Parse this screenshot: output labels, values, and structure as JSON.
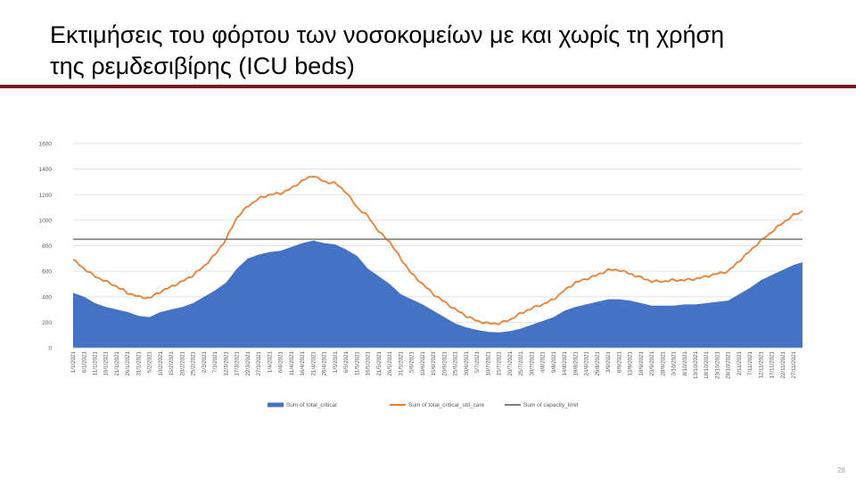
{
  "slide": {
    "title_line1": "Εκτιμήσεις του φόρτου των νοσοκομείων με και χωρίς τη χρήση",
    "title_line2": "της ρεμδεσιβίρης (ICU beds)",
    "page_number": "28",
    "accent_color": "#7b1c1c"
  },
  "chart_data": {
    "type": "area",
    "title": "",
    "xlabel": "",
    "ylabel": "",
    "ylim": [
      0,
      1600
    ],
    "yticks": [
      0,
      200,
      400,
      600,
      800,
      1000,
      1200,
      1400,
      1600
    ],
    "grid": true,
    "legend_position": "bottom",
    "x_tick_labels": [
      "1/1/2021",
      "6/1/2021",
      "11/1/2021",
      "16/1/2021",
      "21/1/2021",
      "26/1/2021",
      "31/1/2021",
      "5/2/2021",
      "10/2/2021",
      "15/2/2021",
      "20/2/2021",
      "25/2/2021",
      "2/3/2021",
      "7/3/2021",
      "12/3/2021",
      "17/3/2021",
      "22/3/2021",
      "27/3/2021",
      "1/4/2021",
      "6/4/2021",
      "11/4/2021",
      "16/4/2021",
      "21/4/2021",
      "26/4/2021",
      "1/5/2021",
      "6/5/2021",
      "11/5/2021",
      "16/5/2021",
      "21/5/2021",
      "26/5/2021",
      "31/5/2021",
      "5/6/2021",
      "10/6/2021",
      "15/6/2021",
      "20/6/2021",
      "25/6/2021",
      "30/6/2021",
      "5/7/2021",
      "10/7/2021",
      "15/7/2021",
      "20/7/2021",
      "25/7/2021",
      "30/7/2021",
      "4/8/2021",
      "9/8/2021",
      "14/8/2021",
      "19/8/2021",
      "24/8/2021",
      "29/8/2021",
      "3/9/2021",
      "8/9/2021",
      "13/9/2021",
      "18/9/2021",
      "23/9/2021",
      "28/9/2021",
      "3/10/2021",
      "8/10/2021",
      "13/10/2021",
      "18/10/2021",
      "23/10/2021",
      "28/10/2021",
      "2/11/2021",
      "7/11/2021",
      "12/11/2021",
      "17/11/2021",
      "22/11/2021",
      "27/11/2021"
    ],
    "x_day_offsets": [
      0,
      5,
      10,
      15,
      20,
      25,
      30,
      35,
      40,
      45,
      50,
      55,
      60,
      65,
      70,
      75,
      80,
      85,
      90,
      95,
      100,
      105,
      110,
      115,
      120,
      125,
      130,
      135,
      140,
      145,
      150,
      155,
      160,
      165,
      170,
      175,
      180,
      185,
      190,
      195,
      200,
      205,
      210,
      215,
      220,
      225,
      230,
      235,
      240,
      245,
      250,
      255,
      260,
      265,
      270,
      275,
      280,
      285,
      290,
      295,
      300,
      305,
      310,
      315,
      320,
      325,
      330
    ],
    "series": [
      {
        "name": "Sum of total_critical",
        "type": "area",
        "color": "#4472c4",
        "x_dates": [
          "1/1/2021",
          "6/1/2021",
          "11/1/2021",
          "16/1/2021",
          "21/1/2021",
          "26/1/2021",
          "31/1/2021",
          "5/2/2021",
          "10/2/2021",
          "15/2/2021",
          "20/2/2021",
          "25/2/2021",
          "2/3/2021",
          "7/3/2021",
          "12/3/2021",
          "17/3/2021",
          "22/3/2021",
          "27/3/2021",
          "1/4/2021",
          "6/4/2021",
          "11/4/2021",
          "16/4/2021",
          "21/4/2021",
          "26/4/2021",
          "1/5/2021",
          "6/5/2021",
          "11/5/2021",
          "16/5/2021",
          "21/5/2021",
          "26/5/2021",
          "31/5/2021",
          "5/6/2021",
          "10/6/2021",
          "15/6/2021",
          "20/6/2021",
          "25/6/2021",
          "30/6/2021",
          "5/7/2021",
          "10/7/2021",
          "15/7/2021",
          "20/7/2021",
          "25/7/2021",
          "30/7/2021",
          "4/8/2021",
          "9/8/2021",
          "14/8/2021",
          "19/8/2021",
          "24/8/2021",
          "29/8/2021",
          "3/9/2021",
          "8/9/2021",
          "13/9/2021",
          "18/9/2021",
          "23/9/2021",
          "28/9/2021",
          "3/10/2021",
          "8/10/2021",
          "13/10/2021",
          "18/10/2021",
          "23/10/2021",
          "28/10/2021",
          "2/11/2021",
          "7/11/2021",
          "12/11/2021",
          "17/11/2021",
          "22/11/2021",
          "27/11/2021",
          "1/12/2021"
        ],
        "x_day_offsets": [
          0,
          5,
          10,
          15,
          20,
          25,
          30,
          35,
          40,
          45,
          50,
          55,
          60,
          65,
          70,
          75,
          80,
          85,
          90,
          95,
          100,
          105,
          110,
          115,
          120,
          125,
          130,
          135,
          140,
          145,
          150,
          155,
          160,
          165,
          170,
          175,
          180,
          185,
          190,
          195,
          200,
          205,
          210,
          215,
          220,
          225,
          230,
          235,
          240,
          245,
          250,
          255,
          260,
          265,
          270,
          275,
          280,
          285,
          290,
          295,
          300,
          305,
          310,
          315,
          320,
          325,
          330,
          334
        ],
        "values": [
          430,
          400,
          350,
          320,
          300,
          280,
          250,
          240,
          280,
          300,
          320,
          350,
          400,
          450,
          510,
          620,
          700,
          730,
          750,
          760,
          790,
          820,
          840,
          820,
          810,
          770,
          720,
          620,
          560,
          500,
          420,
          380,
          340,
          290,
          240,
          190,
          160,
          140,
          125,
          120,
          130,
          150,
          180,
          210,
          240,
          290,
          320,
          340,
          360,
          380,
          380,
          370,
          350,
          330,
          330,
          330,
          340,
          340,
          350,
          360,
          370,
          420,
          470,
          530,
          570,
          610,
          650,
          670
        ]
      },
      {
        "name": "Sum of total_critical_std_care",
        "type": "line",
        "color": "#ed7d31",
        "x_dates": [
          "1/1/2021",
          "6/1/2021",
          "11/1/2021",
          "16/1/2021",
          "21/1/2021",
          "26/1/2021",
          "31/1/2021",
          "5/2/2021",
          "10/2/2021",
          "15/2/2021",
          "20/2/2021",
          "25/2/2021",
          "2/3/2021",
          "7/3/2021",
          "12/3/2021",
          "17/3/2021",
          "22/3/2021",
          "27/3/2021",
          "1/4/2021",
          "6/4/2021",
          "11/4/2021",
          "16/4/2021",
          "21/4/2021",
          "26/4/2021",
          "1/5/2021",
          "6/5/2021",
          "11/5/2021",
          "16/5/2021",
          "21/5/2021",
          "26/5/2021",
          "31/5/2021",
          "5/6/2021",
          "10/6/2021",
          "15/6/2021",
          "20/6/2021",
          "25/6/2021",
          "30/6/2021",
          "5/7/2021",
          "10/7/2021",
          "15/7/2021",
          "20/7/2021",
          "25/7/2021",
          "30/7/2021",
          "4/8/2021",
          "9/8/2021",
          "14/8/2021",
          "19/8/2021",
          "24/8/2021",
          "29/8/2021",
          "3/9/2021",
          "8/9/2021",
          "13/9/2021",
          "18/9/2021",
          "23/9/2021",
          "28/9/2021",
          "3/10/2021",
          "8/10/2021",
          "13/10/2021",
          "18/10/2021",
          "23/10/2021",
          "28/10/2021",
          "2/11/2021",
          "7/11/2021",
          "12/11/2021",
          "17/11/2021",
          "22/11/2021",
          "27/11/2021",
          "1/12/2021"
        ],
        "x_day_offsets": [
          0,
          5,
          10,
          15,
          20,
          25,
          30,
          35,
          40,
          45,
          50,
          55,
          60,
          65,
          70,
          75,
          80,
          85,
          90,
          95,
          100,
          105,
          110,
          115,
          120,
          125,
          130,
          135,
          140,
          145,
          150,
          155,
          160,
          165,
          170,
          175,
          180,
          185,
          190,
          195,
          200,
          205,
          210,
          215,
          220,
          225,
          230,
          235,
          240,
          245,
          250,
          255,
          260,
          265,
          270,
          275,
          280,
          285,
          290,
          295,
          300,
          305,
          310,
          315,
          320,
          325,
          330,
          334
        ],
        "values": [
          690,
          620,
          560,
          520,
          480,
          430,
          400,
          390,
          440,
          480,
          520,
          570,
          640,
          730,
          850,
          1020,
          1110,
          1170,
          1200,
          1210,
          1250,
          1310,
          1350,
          1300,
          1290,
          1220,
          1100,
          1030,
          910,
          830,
          700,
          580,
          500,
          420,
          360,
          300,
          250,
          210,
          190,
          190,
          220,
          270,
          310,
          340,
          380,
          450,
          510,
          540,
          570,
          610,
          610,
          580,
          550,
          520,
          520,
          530,
          530,
          540,
          560,
          580,
          600,
          680,
          760,
          840,
          910,
          980,
          1040,
          1070
        ]
      },
      {
        "name": "Sum of capacity_limit",
        "type": "line",
        "color": "#7f7f7f",
        "x_dates": [
          "1/1/2021",
          "1/12/2021"
        ],
        "x_day_offsets": [
          0,
          334
        ],
        "values": [
          850,
          850
        ]
      }
    ]
  }
}
